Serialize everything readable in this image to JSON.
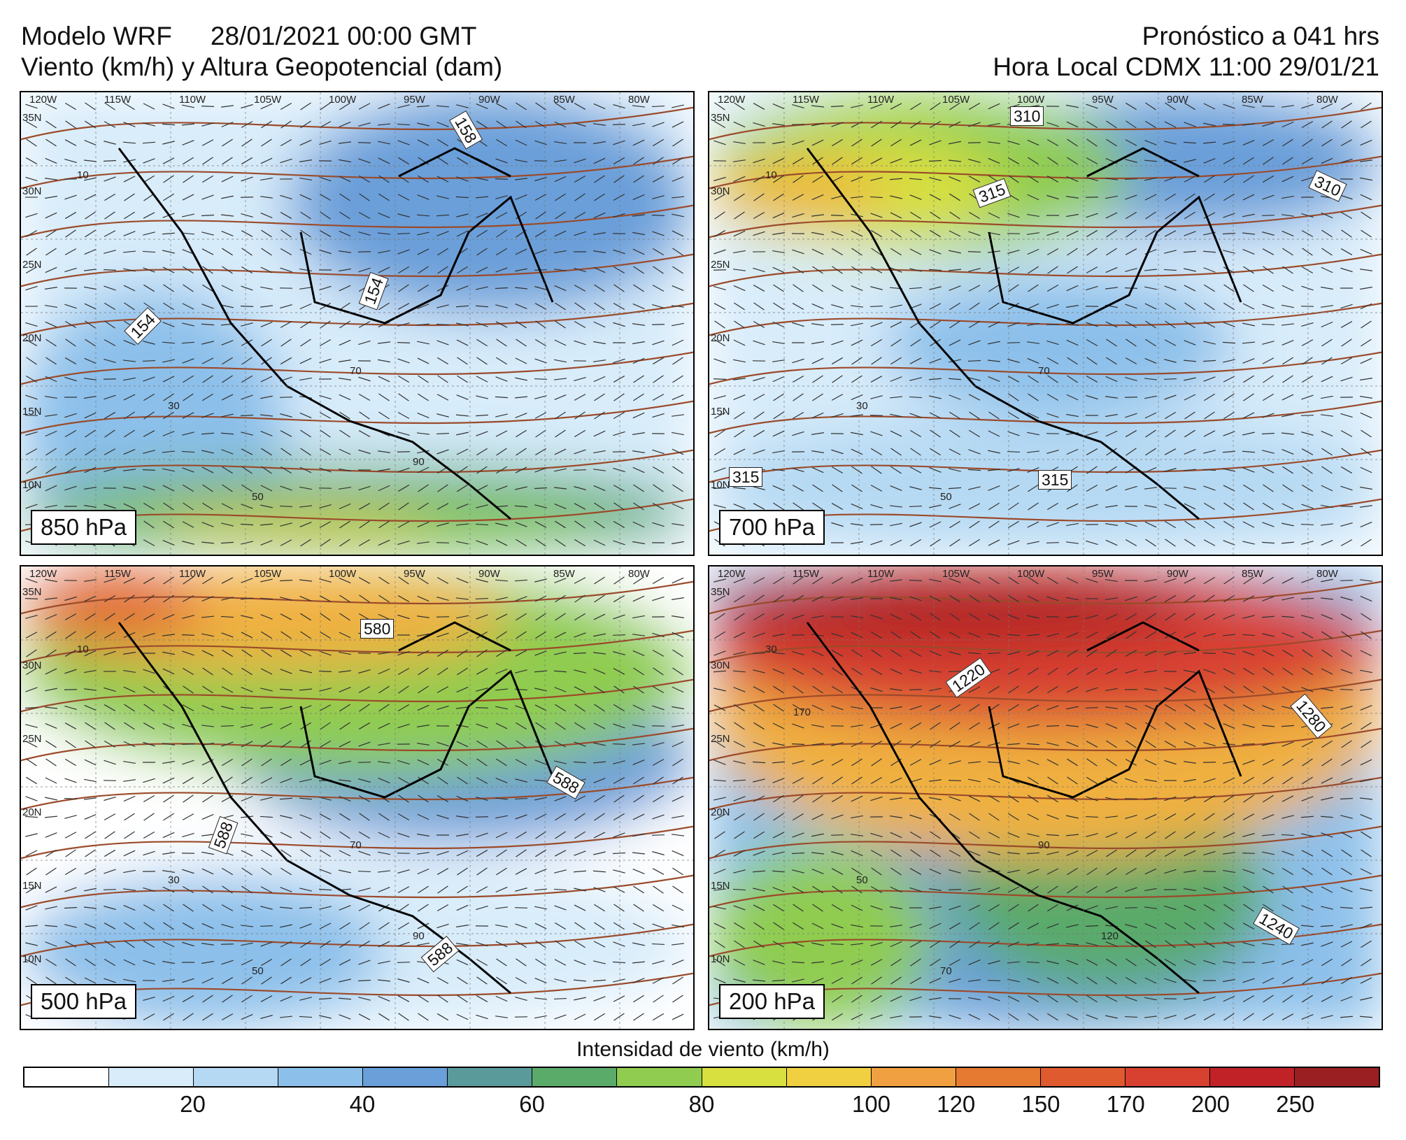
{
  "header": {
    "model": "Modelo WRF",
    "init": "28/01/2021 00:00 GMT",
    "subtitle": "Viento (km/h) y Altura Geopotencial (dam)",
    "forecast": "Pronóstico a 041 hrs",
    "local": "Hora Local CDMX 11:00 29/01/21"
  },
  "axes": {
    "lon": [
      "120W",
      "115W",
      "110W",
      "105W",
      "100W",
      "95W",
      "90W",
      "85W",
      "80W"
    ],
    "lat": [
      "35N",
      "30N",
      "25N",
      "20N",
      "15N",
      "10N"
    ]
  },
  "panels": [
    {
      "id": "p850",
      "level": "850 hPa",
      "contours": [
        "154",
        "158",
        "154"
      ],
      "speed_labels": [
        "10",
        "30",
        "50",
        "70",
        "90"
      ],
      "colors": [
        "#d8ecfa",
        "#b5d9f3",
        "#8cc0ea",
        "#6a9fd9",
        "#5aaa6a",
        "#8fcc50",
        "#f0d040"
      ]
    },
    {
      "id": "p700",
      "level": "700 hPa",
      "contours": [
        "310",
        "315",
        "310",
        "315",
        "315"
      ],
      "speed_labels": [
        "10",
        "30",
        "50",
        "70"
      ],
      "colors": [
        "#d8ecfa",
        "#b5d9f3",
        "#8cc0ea",
        "#6a9fd9",
        "#8fcc50",
        "#d8e040",
        "#f0b040"
      ]
    },
    {
      "id": "p500",
      "level": "500 hPa",
      "contours": [
        "580",
        "588",
        "588",
        "588"
      ],
      "speed_labels": [
        "10",
        "30",
        "50",
        "70",
        "90"
      ],
      "colors": [
        "#ffffff",
        "#d8ecfa",
        "#8cc0ea",
        "#6a9fd9",
        "#8fcc50",
        "#f0b040",
        "#e06a30"
      ]
    },
    {
      "id": "p200",
      "level": "200 hPa",
      "contours": [
        "1220",
        "1280",
        "1240"
      ],
      "speed_labels": [
        "30",
        "50",
        "70",
        "90",
        "120",
        "170"
      ],
      "colors": [
        "#8cc0ea",
        "#6a9fd9",
        "#5aaa6a",
        "#8fcc50",
        "#f0b040",
        "#d84030",
        "#b02020"
      ]
    }
  ],
  "colorbar": {
    "title": "Intensidad de viento (km/h)",
    "colors": [
      "#ffffff",
      "#d8ecfa",
      "#b5d9f3",
      "#8cc0ea",
      "#6a9fd9",
      "#5a9a9a",
      "#5aaa6a",
      "#8fcc50",
      "#d8e040",
      "#f0d040",
      "#f0a040",
      "#e67a30",
      "#e05a30",
      "#d84030",
      "#c02228",
      "#9a1f22"
    ],
    "ticks": [
      "20",
      "40",
      "60",
      "80",
      "100",
      "120",
      "150",
      "170",
      "200",
      "250"
    ]
  }
}
